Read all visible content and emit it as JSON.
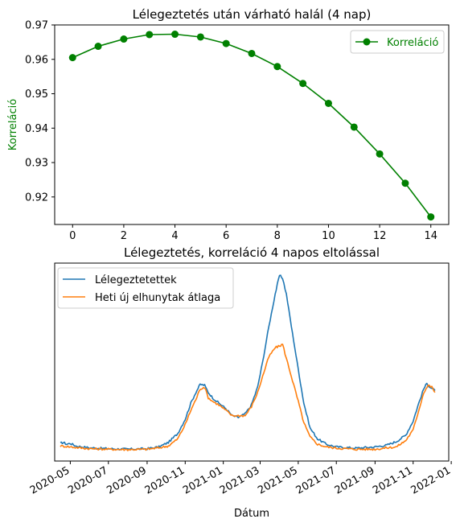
{
  "colors": {
    "green": "#008000",
    "blue": "#1f77b4",
    "orange": "#ff7f0e"
  },
  "chart_data": [
    {
      "type": "line",
      "title": "Lélegeztetés után várható halál (4 nap)",
      "xlabel": "",
      "ylabel": "Korreláció",
      "x": [
        0,
        1,
        2,
        3,
        4,
        5,
        6,
        7,
        8,
        9,
        10,
        11,
        12,
        13,
        14
      ],
      "series": [
        {
          "name": "Korreláció",
          "color": "#008000",
          "marker": "circle",
          "values": [
            0.9605,
            0.9638,
            0.9659,
            0.9672,
            0.9673,
            0.9665,
            0.9646,
            0.9617,
            0.9579,
            0.953,
            0.9472,
            0.9403,
            0.9325,
            0.924,
            0.9142
          ]
        }
      ],
      "xlim": [
        -0.7,
        14.7
      ],
      "ylim": [
        0.912,
        0.97
      ],
      "xticks": [
        0,
        2,
        4,
        6,
        8,
        10,
        12,
        14
      ],
      "yticks": [
        0.92,
        0.93,
        0.94,
        0.95,
        0.96,
        0.97
      ],
      "ytick_labels": [
        "0.92",
        "0.93",
        "0.94",
        "0.95",
        "0.96",
        "0.97"
      ],
      "legend": "top-right"
    },
    {
      "type": "line",
      "title": "Lélegeztetés, korreláció 4 napos eltolással",
      "xlabel": "Dátum",
      "ylabel": "",
      "y_axis_ticks": "none",
      "xlim": [
        "2020-04-06",
        "2021-12-28"
      ],
      "ylim": [
        0,
        1
      ],
      "xticks": [
        "2020-05-01",
        "2020-07-01",
        "2020-09-01",
        "2020-11-01",
        "2021-01-01",
        "2021-03-01",
        "2021-05-01",
        "2021-07-01",
        "2021-09-01",
        "2021-11-01",
        "2022-01-01"
      ],
      "xtick_labels": [
        "2020-05",
        "2020-07",
        "2020-09",
        "2020-11",
        "2021-01",
        "2021-03",
        "2021-05",
        "2021-07",
        "2021-09",
        "2021-11",
        "2022-01"
      ],
      "legend": "top-left",
      "series": [
        {
          "name": "Lélegeztetettek",
          "color": "#1f77b4",
          "points": [
            [
              "2020-04-15",
              0.045
            ],
            [
              "2020-04-20",
              0.05
            ],
            [
              "2020-04-25",
              0.04
            ],
            [
              "2020-05-01",
              0.045
            ],
            [
              "2020-05-10",
              0.03
            ],
            [
              "2020-06-01",
              0.02
            ],
            [
              "2020-07-01",
              0.015
            ],
            [
              "2020-08-01",
              0.012
            ],
            [
              "2020-09-01",
              0.015
            ],
            [
              "2020-09-20",
              0.025
            ],
            [
              "2020-10-05",
              0.05
            ],
            [
              "2020-10-20",
              0.1
            ],
            [
              "2020-11-01",
              0.18
            ],
            [
              "2020-11-10",
              0.27
            ],
            [
              "2020-11-18",
              0.33
            ],
            [
              "2020-11-25",
              0.375
            ],
            [
              "2020-12-02",
              0.37
            ],
            [
              "2020-12-08",
              0.33
            ],
            [
              "2020-12-15",
              0.3
            ],
            [
              "2020-12-25",
              0.27
            ],
            [
              "2021-01-05",
              0.24
            ],
            [
              "2021-01-15",
              0.2
            ],
            [
              "2021-01-25",
              0.19
            ],
            [
              "2021-02-05",
              0.21
            ],
            [
              "2021-02-15",
              0.26
            ],
            [
              "2021-02-25",
              0.36
            ],
            [
              "2021-03-05",
              0.5
            ],
            [
              "2021-03-15",
              0.7
            ],
            [
              "2021-03-25",
              0.88
            ],
            [
              "2021-04-01",
              0.985
            ],
            [
              "2021-04-06",
              0.97
            ],
            [
              "2021-04-12",
              0.88
            ],
            [
              "2021-04-20",
              0.7
            ],
            [
              "2021-05-01",
              0.46
            ],
            [
              "2021-05-10",
              0.27
            ],
            [
              "2021-05-20",
              0.13
            ],
            [
              "2021-06-01",
              0.07
            ],
            [
              "2021-06-15",
              0.04
            ],
            [
              "2021-07-01",
              0.025
            ],
            [
              "2021-08-01",
              0.018
            ],
            [
              "2021-09-01",
              0.025
            ],
            [
              "2021-09-20",
              0.035
            ],
            [
              "2021-10-05",
              0.055
            ],
            [
              "2021-10-20",
              0.09
            ],
            [
              "2021-11-01",
              0.17
            ],
            [
              "2021-11-10",
              0.27
            ],
            [
              "2021-11-18",
              0.35
            ],
            [
              "2021-11-23",
              0.38
            ],
            [
              "2021-11-28",
              0.36
            ],
            [
              "2021-12-02",
              0.35
            ],
            [
              "2021-12-06",
              0.34
            ]
          ]
        },
        {
          "name": "Heti új elhunytak átlaga",
          "color": "#ff7f0e",
          "points": [
            [
              "2020-04-15",
              0.03
            ],
            [
              "2020-04-25",
              0.028
            ],
            [
              "2020-05-01",
              0.025
            ],
            [
              "2020-05-15",
              0.02
            ],
            [
              "2020-06-01",
              0.015
            ],
            [
              "2020-07-01",
              0.012
            ],
            [
              "2020-08-01",
              0.01
            ],
            [
              "2020-09-01",
              0.012
            ],
            [
              "2020-09-20",
              0.02
            ],
            [
              "2020-10-05",
              0.03
            ],
            [
              "2020-10-20",
              0.07
            ],
            [
              "2020-11-01",
              0.15
            ],
            [
              "2020-11-10",
              0.23
            ],
            [
              "2020-11-18",
              0.29
            ],
            [
              "2020-11-25",
              0.35
            ],
            [
              "2020-12-02",
              0.36
            ],
            [
              "2020-12-08",
              0.3
            ],
            [
              "2020-12-15",
              0.28
            ],
            [
              "2020-12-25",
              0.26
            ],
            [
              "2021-01-05",
              0.23
            ],
            [
              "2021-01-15",
              0.2
            ],
            [
              "2021-01-25",
              0.2
            ],
            [
              "2021-02-05",
              0.2
            ],
            [
              "2021-02-15",
              0.25
            ],
            [
              "2021-02-25",
              0.33
            ],
            [
              "2021-03-05",
              0.42
            ],
            [
              "2021-03-15",
              0.53
            ],
            [
              "2021-03-25",
              0.58
            ],
            [
              "2021-04-01",
              0.59
            ],
            [
              "2021-04-06",
              0.6
            ],
            [
              "2021-04-12",
              0.52
            ],
            [
              "2021-04-20",
              0.42
            ],
            [
              "2021-05-01",
              0.28
            ],
            [
              "2021-05-10",
              0.16
            ],
            [
              "2021-05-20",
              0.08
            ],
            [
              "2021-06-01",
              0.04
            ],
            [
              "2021-06-15",
              0.025
            ],
            [
              "2021-07-01",
              0.018
            ],
            [
              "2021-08-01",
              0.012
            ],
            [
              "2021-09-01",
              0.012
            ],
            [
              "2021-09-20",
              0.02
            ],
            [
              "2021-10-05",
              0.025
            ],
            [
              "2021-10-20",
              0.06
            ],
            [
              "2021-11-01",
              0.12
            ],
            [
              "2021-11-10",
              0.23
            ],
            [
              "2021-11-18",
              0.33
            ],
            [
              "2021-11-25",
              0.37
            ],
            [
              "2021-12-01",
              0.36
            ],
            [
              "2021-12-06",
              0.33
            ]
          ]
        }
      ]
    }
  ]
}
